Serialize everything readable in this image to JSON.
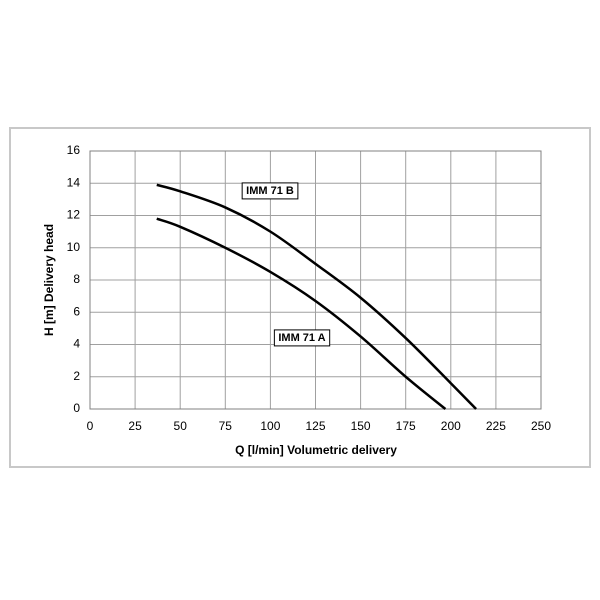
{
  "chart_data": {
    "type": "line",
    "xlabel": "Q [l/min] Volumetric delivery",
    "ylabel": "H [m] Delivery head",
    "xlim": [
      0,
      250
    ],
    "ylim": [
      0,
      16
    ],
    "xticks": [
      0,
      25,
      50,
      75,
      100,
      125,
      150,
      175,
      200,
      225,
      250
    ],
    "yticks": [
      0,
      2,
      4,
      6,
      8,
      10,
      12,
      14,
      16
    ],
    "grid": true,
    "series": [
      {
        "name": "IMM 71 B",
        "color": "#000000",
        "x": [
          37,
          50,
          75,
          100,
          125,
          150,
          175,
          200,
          214
        ],
        "values": [
          13.9,
          13.5,
          12.5,
          11.0,
          9.0,
          6.9,
          4.4,
          1.6,
          0
        ]
      },
      {
        "name": "IMM 71 A",
        "color": "#000000",
        "x": [
          37,
          50,
          75,
          100,
          125,
          150,
          175,
          197
        ],
        "values": [
          11.8,
          11.3,
          10.0,
          8.5,
          6.7,
          4.5,
          2.0,
          0
        ]
      }
    ]
  }
}
